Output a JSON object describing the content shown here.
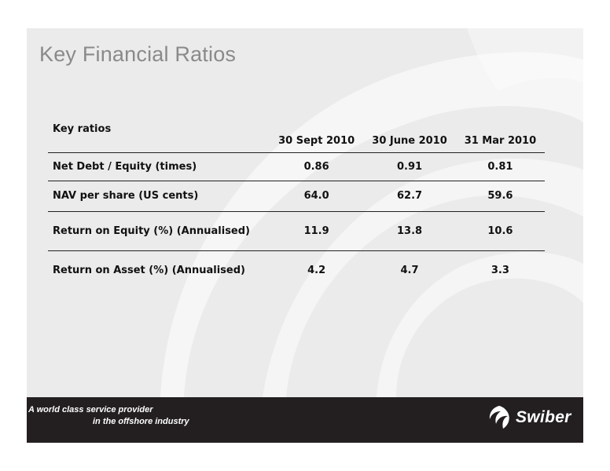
{
  "slide": {
    "title": "Key Financial Ratios"
  },
  "table": {
    "header_label": "Key  ratios",
    "columns": [
      "30 Sept 2010",
      "30 June 2010",
      "31 Mar 2010"
    ],
    "rows": [
      {
        "label": "Net Debt / Equity (times)",
        "values": [
          "0.86",
          "0.91",
          "0.81"
        ]
      },
      {
        "label": "NAV per share (US cents)",
        "values": [
          "64.0",
          "62.7",
          "59.6"
        ]
      },
      {
        "label": "Return on Equity (%) (Annualised)",
        "values": [
          "11.9",
          "13.8",
          "10.6"
        ]
      },
      {
        "label": "Return on Asset (%) (Annualised)",
        "values": [
          "4.2",
          "4.7",
          "3.3"
        ]
      }
    ]
  },
  "footer": {
    "tagline_line1": "A world class service provider",
    "tagline_line2": "in the offshore industry",
    "logo_text": "Swiber"
  },
  "colors": {
    "panel": "#ebebeb",
    "band": "#231f20",
    "title": "#8a8a8a"
  },
  "icons": {
    "logo": "swiber-swirl-logo-icon",
    "background": "swirl-watermark"
  }
}
